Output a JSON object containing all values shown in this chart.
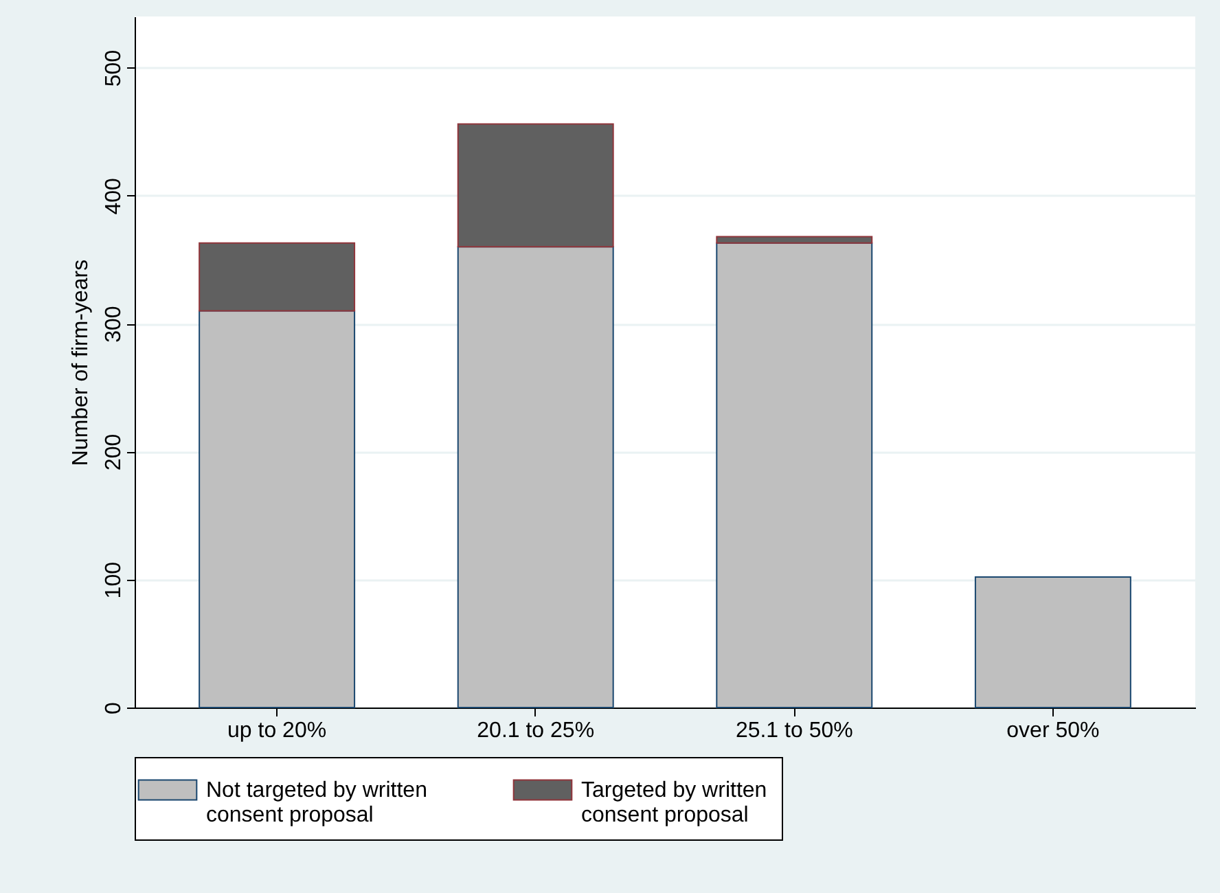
{
  "chart_data": {
    "type": "bar",
    "stacked": true,
    "ylabel": "Number of firm-years",
    "categories": [
      "up to 20%",
      "20.1 to 25%",
      "25.1 to 50%",
      "over 50%"
    ],
    "series": [
      {
        "name": "Not targeted by written consent proposal",
        "color": "#bfbfbf",
        "values": [
          310,
          360,
          363,
          102
        ]
      },
      {
        "name": "Targeted by written consent proposal",
        "color": "#606060",
        "values": [
          53,
          96,
          5,
          null
        ]
      }
    ],
    "ylim": [
      0,
      540
    ],
    "yticks": [
      0,
      100,
      200,
      300,
      400,
      500
    ],
    "grid": "y",
    "legend": "bottom"
  }
}
